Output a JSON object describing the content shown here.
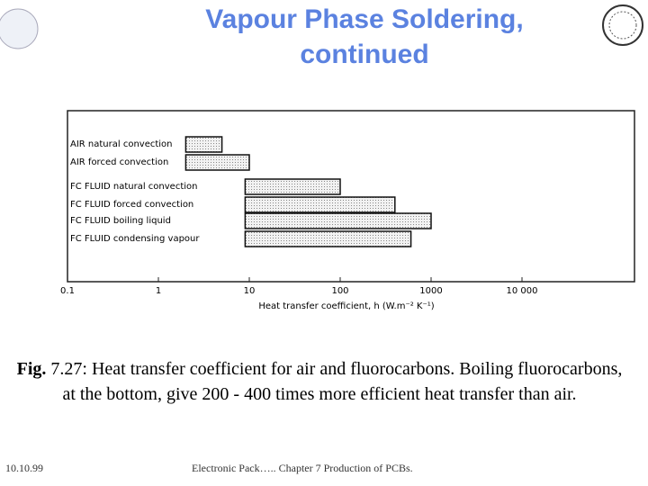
{
  "slide": {
    "title_lines": [
      "Vapour Phase Soldering,",
      "continued"
    ],
    "caption_label": "Fig.",
    "caption_text": "7.27: Heat transfer coefficient for air and fluorocarbons. Boiling fluorocarbons, at the bottom, give 200 - 400 times more efficient heat transfer than air.",
    "footer_date": "10.10.99",
    "footer_text": "Electronic Pack….. Chapter 7 Production of PCBs."
  },
  "chart_data": {
    "type": "range-bar",
    "categories": [
      "AIR natural convection",
      "AIR forced convection",
      "FC FLUID natural convection",
      "FC FLUID forced convection",
      "FC FLUID boiling liquid",
      "FC FLUID condensing vapour"
    ],
    "low": [
      2,
      2,
      9,
      9,
      9,
      9
    ],
    "high": [
      5,
      10,
      100,
      400,
      1000,
      600
    ],
    "color": "#d8d8d8",
    "x_label": "Heat transfer coefficient, h (W.m⁻² K⁻¹)",
    "log_scale": true,
    "xlim": [
      0.1,
      100000
    ],
    "xticks": [
      0.1,
      1,
      10,
      100,
      1000,
      {
        "value": 10000,
        "label": "10 000"
      }
    ]
  }
}
